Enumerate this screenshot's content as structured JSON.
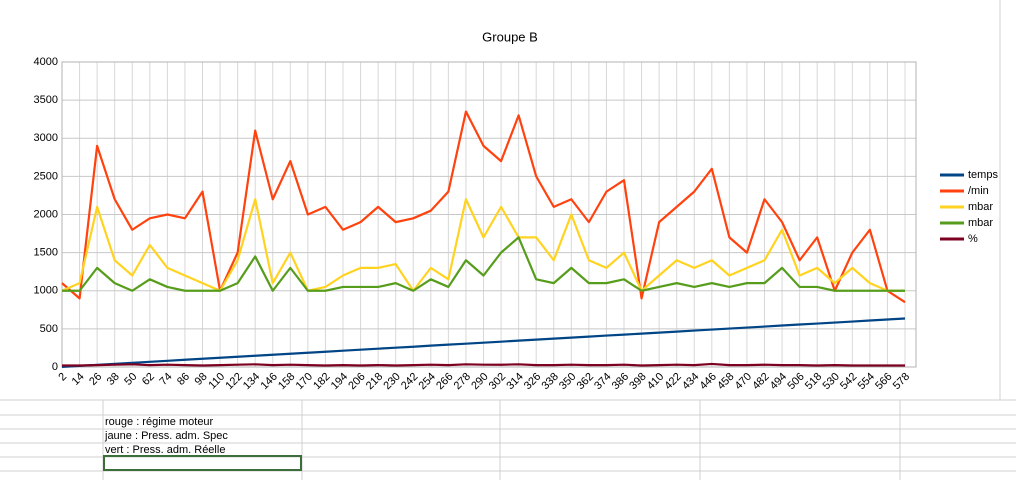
{
  "chart_data": {
    "type": "line",
    "title": "Groupe B",
    "categories": [
      2,
      14,
      26,
      38,
      50,
      62,
      74,
      86,
      98,
      110,
      122,
      134,
      146,
      158,
      170,
      182,
      194,
      206,
      218,
      230,
      242,
      254,
      266,
      278,
      290,
      302,
      314,
      326,
      338,
      350,
      362,
      374,
      386,
      398,
      410,
      422,
      434,
      446,
      458,
      470,
      482,
      494,
      506,
      518,
      530,
      542,
      554,
      566,
      578
    ],
    "ylim": [
      0,
      4000
    ],
    "yticks": [
      0,
      500,
      1000,
      1500,
      2000,
      2500,
      3000,
      3500,
      4000
    ],
    "grid": true,
    "legend": "right",
    "series": [
      {
        "name": "temps",
        "color": "#004586",
        "values": [
          2,
          15,
          29,
          42,
          55,
          68,
          81,
          95,
          108,
          121,
          134,
          148,
          161,
          174,
          187,
          200,
          214,
          227,
          240,
          253,
          266,
          280,
          293,
          306,
          319,
          332,
          346,
          359,
          372,
          385,
          398,
          412,
          425,
          438,
          451,
          464,
          478,
          491,
          504,
          517,
          530,
          544,
          557,
          570,
          583,
          596,
          610,
          623,
          636
        ]
      },
      {
        "name": "/min",
        "color": "#ff420e",
        "values": [
          1100,
          900,
          2900,
          2200,
          1800,
          1950,
          2000,
          1950,
          2300,
          1000,
          1500,
          3100,
          2200,
          2700,
          2000,
          2100,
          1800,
          1900,
          2100,
          1900,
          1950,
          2050,
          2300,
          3350,
          2900,
          2700,
          3300,
          2500,
          2100,
          2200,
          1900,
          2300,
          2450,
          900,
          1900,
          2100,
          2300,
          2600,
          1700,
          1500,
          2200,
          1900,
          1400,
          1700,
          1000,
          1500,
          1800,
          1000,
          850
        ]
      },
      {
        "name": "mbar",
        "color": "#ffd320",
        "values": [
          1000,
          1100,
          2100,
          1400,
          1200,
          1600,
          1300,
          1200,
          1100,
          1000,
          1400,
          2200,
          1100,
          1500,
          1000,
          1050,
          1200,
          1300,
          1300,
          1350,
          1000,
          1300,
          1150,
          2200,
          1700,
          2100,
          1700,
          1700,
          1400,
          2000,
          1400,
          1300,
          1500,
          1000,
          1200,
          1400,
          1300,
          1400,
          1200,
          1300,
          1400,
          1800,
          1200,
          1300,
          1100,
          1300,
          1100,
          1000,
          1000
        ]
      },
      {
        "name": "mbar",
        "color": "#579d1c",
        "values": [
          1000,
          1000,
          1300,
          1100,
          1000,
          1150,
          1050,
          1000,
          1000,
          1000,
          1100,
          1450,
          1000,
          1300,
          1000,
          1000,
          1050,
          1050,
          1050,
          1100,
          1000,
          1150,
          1050,
          1400,
          1200,
          1500,
          1700,
          1150,
          1100,
          1300,
          1100,
          1100,
          1150,
          1000,
          1050,
          1100,
          1050,
          1100,
          1050,
          1100,
          1100,
          1300,
          1050,
          1050,
          1000,
          1000,
          1000,
          1000,
          1000
        ]
      },
      {
        "name": "%",
        "color": "#7e0021",
        "values": [
          20,
          20,
          25,
          30,
          35,
          25,
          30,
          25,
          20,
          25,
          30,
          35,
          25,
          30,
          25,
          20,
          25,
          20,
          25,
          20,
          25,
          30,
          25,
          35,
          30,
          30,
          35,
          25,
          25,
          30,
          25,
          25,
          30,
          20,
          25,
          30,
          25,
          40,
          25,
          25,
          30,
          25,
          25,
          20,
          25,
          20,
          20,
          20,
          20
        ]
      }
    ]
  },
  "notes": [
    "rouge : régime moteur",
    "jaune : Press. adm. Spec",
    "vert : Press. adm. Réelle"
  ]
}
